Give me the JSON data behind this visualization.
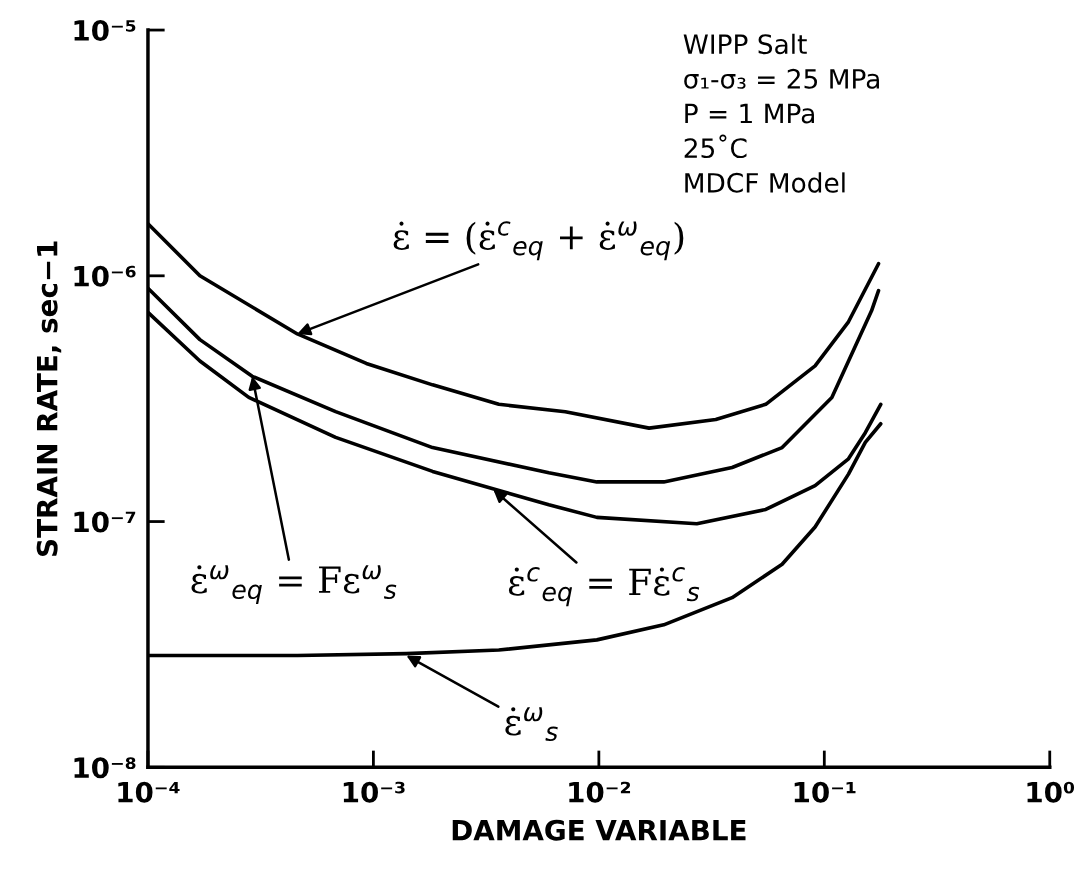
{
  "chart_data": {
    "type": "line",
    "xlabel": "DAMAGE VARIABLE",
    "ylabel": "STRAIN RATE, sec−1",
    "log": "xy",
    "xlim": [
      0.0001,
      1
    ],
    "ylim": [
      1e-08,
      1e-05
    ],
    "xticks": [
      {
        "value": 0.0001,
        "label": "10⁻⁴"
      },
      {
        "value": 0.001,
        "label": "10⁻³"
      },
      {
        "value": 0.01,
        "label": "10⁻²"
      },
      {
        "value": 0.1,
        "label": "10⁻¹"
      },
      {
        "value": 1,
        "label": "10⁰"
      }
    ],
    "yticks": [
      {
        "value": 1e-08,
        "label": "10⁻⁸"
      },
      {
        "value": 1e-07,
        "label": "10⁻⁷"
      },
      {
        "value": 1e-06,
        "label": "10⁻⁶"
      },
      {
        "value": 1e-05,
        "label": "10⁻⁵"
      }
    ],
    "series": [
      {
        "color": "#000000",
        "x": [
          0.0001,
          0.00017,
          0.00046,
          0.00093,
          0.00183,
          0.0036,
          0.0071,
          0.0167,
          0.033,
          0.055,
          0.091,
          0.128,
          0.174
        ],
        "values": [
          1.63e-06,
          1e-06,
          5.8e-07,
          4.4e-07,
          3.6e-07,
          3e-07,
          2.8e-07,
          2.4e-07,
          2.6e-07,
          3e-07,
          4.3e-07,
          6.5e-07,
          1.12e-06
        ]
      },
      {
        "color": "#000000",
        "x": [
          0.0001,
          0.00017,
          0.00029,
          0.00068,
          0.00183,
          0.006,
          0.0098,
          0.0194,
          0.039,
          0.065,
          0.108,
          0.162,
          0.174
        ],
        "values": [
          8.9e-07,
          5.5e-07,
          3.9e-07,
          2.8e-07,
          2e-07,
          1.58e-07,
          1.45e-07,
          1.45e-07,
          1.66e-07,
          2e-07,
          3.2e-07,
          7.2e-07,
          8.7e-07
        ]
      },
      {
        "color": "#000000",
        "x": [
          0.0001,
          0.00017,
          0.00028,
          0.00068,
          0.00183,
          0.006,
          0.0098,
          0.0272,
          0.055,
          0.091,
          0.128,
          0.152,
          0.178
        ],
        "values": [
          7.1e-07,
          4.5e-07,
          3.2e-07,
          2.2e-07,
          1.6e-07,
          1.17e-07,
          1.04e-07,
          9.8e-08,
          1.12e-07,
          1.4e-07,
          1.8e-07,
          2.3e-07,
          3e-07
        ]
      },
      {
        "color": "#000000",
        "x": [
          0.0001,
          0.00046,
          0.0014,
          0.0036,
          0.0098,
          0.0194,
          0.039,
          0.065,
          0.091,
          0.128,
          0.152,
          0.178
        ],
        "values": [
          2.85e-08,
          2.85e-08,
          2.9e-08,
          3e-08,
          3.3e-08,
          3.8e-08,
          4.9e-08,
          6.7e-08,
          9.5e-08,
          1.56e-07,
          2.1e-07,
          2.5e-07
        ]
      }
    ],
    "annotations": [
      "WIPP Salt",
      "σ₁-σ₃ = 25 MPa",
      "P = 1 MPa",
      "25˚C",
      "MDCF Model",
      {
        "text": "ε̇ = (ε̇$^{c}$$_{eq}$ + ε̇$^{ω}$$_{eq}$)",
        "x": 0.00046,
        "y": 5.8e-07
      },
      {
        "text": "ε̇$^{ω}$$_{eq}$ = Fε$^{ω}$$_{s}$",
        "x": 0.00029,
        "y": 3.9e-07
      },
      {
        "text": "ε̇$^{c}$$_{eq}$ = Fε̇$^{c}$$_{s}$",
        "x": 0.0034,
        "y": 1.35e-07
      },
      {
        "text": "ε̇$^{ω}$$_{s}$",
        "x": 0.0014,
        "y": 2.85e-08
      }
    ]
  }
}
